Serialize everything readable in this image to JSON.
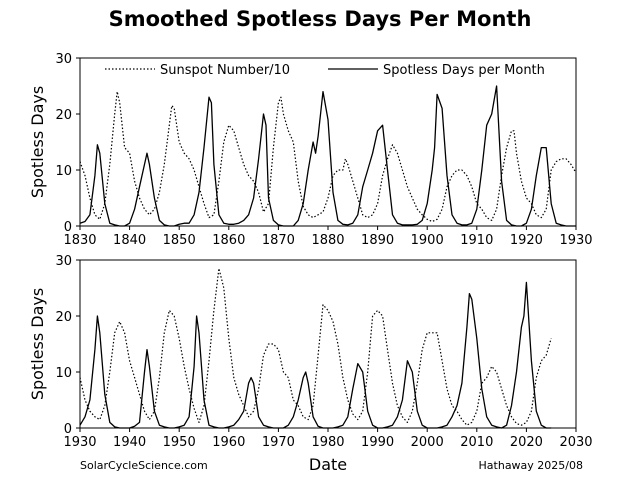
{
  "title": "Smoothed Spotless Days Per Month",
  "footer": {
    "left": "SolarCycleScience.com",
    "right": "Hathaway 2025/08"
  },
  "legend": {
    "sunspot": "Sunspot Number/10",
    "spotless": "Spotless Days per Month"
  },
  "colors": {
    "line": "#000000",
    "background": "#ffffff"
  },
  "chart_data": [
    {
      "type": "line",
      "title": "Smoothed Spotless Days Per Month",
      "xlabel": "",
      "ylabel": "Spotless Days",
      "xlim": [
        1830,
        1930
      ],
      "ylim": [
        0,
        30
      ],
      "xticks": [
        1830,
        1840,
        1850,
        1860,
        1870,
        1880,
        1890,
        1900,
        1910,
        1920,
        1930
      ],
      "yticks": [
        0,
        10,
        20,
        30
      ],
      "legend_position": "top",
      "series": [
        {
          "name": "Sunspot Number/10",
          "style": "dotted",
          "x": [
            1830,
            1831,
            1832,
            1833,
            1834,
            1835,
            1836,
            1837,
            1837.5,
            1838,
            1839,
            1840,
            1841,
            1842,
            1843,
            1844,
            1845,
            1846,
            1847,
            1848,
            1848.5,
            1849,
            1850,
            1851,
            1852,
            1853,
            1854,
            1855,
            1856,
            1857,
            1858,
            1859,
            1860,
            1861,
            1862,
            1863,
            1864,
            1865,
            1866,
            1867,
            1868,
            1869,
            1870,
            1870.5,
            1871,
            1872,
            1873,
            1874,
            1875,
            1876,
            1877,
            1878,
            1879,
            1880,
            1881,
            1882,
            1883,
            1883.5,
            1884,
            1885,
            1886,
            1887,
            1888,
            1889,
            1890,
            1891,
            1892,
            1893,
            1894,
            1895,
            1896,
            1897,
            1898,
            1899,
            1900,
            1901,
            1902,
            1903,
            1904,
            1905,
            1906,
            1907,
            1908,
            1909,
            1910,
            1911,
            1912,
            1913,
            1914,
            1915,
            1916,
            1917,
            1917.5,
            1918,
            1919,
            1920,
            1921,
            1922,
            1923,
            1924,
            1925,
            1926,
            1927,
            1928,
            1929,
            1930
          ],
          "y": [
            11.5,
            9,
            5,
            2,
            1.2,
            4,
            11,
            20,
            24,
            22,
            14,
            13,
            8,
            5,
            3,
            2,
            3,
            6,
            11,
            18,
            21.5,
            21,
            15,
            13,
            12,
            10,
            7,
            4,
            1.5,
            2,
            8,
            15,
            18,
            17,
            14,
            11,
            9,
            8,
            6,
            2.5,
            4,
            14,
            22,
            23,
            20,
            17,
            15,
            8,
            3.5,
            2,
            1.5,
            2,
            2.5,
            5,
            9,
            10,
            10,
            12,
            11,
            8,
            5,
            2,
            1.5,
            2,
            4,
            9,
            12,
            14.5,
            13,
            10,
            7,
            5,
            3,
            2,
            1.2,
            0.8,
            1.2,
            3,
            7,
            9,
            10,
            10,
            9,
            7,
            4,
            3,
            1.5,
            1,
            3,
            9,
            14,
            17,
            17,
            13,
            8,
            5,
            4,
            2,
            1.5,
            3,
            10,
            11.5,
            12,
            12,
            11,
            9.5
          ]
        },
        {
          "name": "Spotless Days per Month",
          "style": "solid",
          "x": [
            1830,
            1831,
            1832,
            1833,
            1833.5,
            1834,
            1835,
            1836,
            1837,
            1838,
            1839,
            1840,
            1841,
            1842,
            1843,
            1843.5,
            1844,
            1845,
            1846,
            1847,
            1848,
            1849,
            1850,
            1851,
            1852,
            1853,
            1854,
            1855,
            1856,
            1856.5,
            1857,
            1858,
            1859,
            1860,
            1861,
            1862,
            1863,
            1864,
            1865,
            1866,
            1867,
            1867.5,
            1868,
            1869,
            1870,
            1871,
            1872,
            1873,
            1874,
            1875,
            1876,
            1877,
            1877.5,
            1878,
            1879,
            1880,
            1881,
            1882,
            1883,
            1884,
            1885,
            1886,
            1887,
            1888,
            1889,
            1890,
            1891,
            1892,
            1893,
            1894,
            1895,
            1896,
            1897,
            1898,
            1899,
            1900,
            1901,
            1901.5,
            1902,
            1903,
            1904,
            1905,
            1906,
            1907,
            1908,
            1909,
            1910,
            1911,
            1912,
            1913,
            1914,
            1915,
            1916,
            1917,
            1918,
            1919,
            1920,
            1921,
            1922,
            1923,
            1924,
            1925,
            1926,
            1927,
            1928,
            1929,
            1930
          ],
          "y": [
            0.5,
            0.8,
            2,
            9,
            14.5,
            13,
            4,
            0.5,
            0.2,
            0,
            0,
            0.5,
            3,
            7,
            11,
            13,
            11,
            5,
            1,
            0.2,
            0,
            0,
            0.3,
            0.5,
            0.5,
            2,
            6,
            14,
            23,
            22,
            11,
            2,
            0.5,
            0.3,
            0.3,
            0.5,
            1,
            2,
            5,
            12,
            20,
            18,
            5,
            1,
            0.2,
            0,
            0,
            0,
            1,
            4,
            10,
            15,
            13,
            16,
            24,
            19,
            6,
            1,
            0.3,
            0.2,
            0.5,
            2,
            7,
            10,
            13,
            17,
            18,
            10,
            2,
            0.5,
            0.2,
            0.2,
            0.2,
            0.3,
            1,
            4,
            10,
            14,
            23.5,
            21,
            9,
            2,
            0.5,
            0.2,
            0.2,
            0.5,
            3,
            10,
            18,
            20,
            25,
            8,
            1,
            0.2,
            0,
            0,
            0.5,
            3,
            9,
            14,
            14,
            4,
            0.5,
            0.2,
            0,
            0,
            0
          ]
        }
      ]
    },
    {
      "type": "line",
      "xlabel": "Date",
      "ylabel": "Spotless Days",
      "xlim": [
        1930,
        2030
      ],
      "ylim": [
        0,
        30
      ],
      "xticks": [
        1930,
        1940,
        1950,
        1960,
        1970,
        1980,
        1990,
        2000,
        2010,
        2020,
        2030
      ],
      "yticks": [
        0,
        10,
        20,
        30
      ],
      "series": [
        {
          "name": "Sunspot Number/10",
          "style": "dotted",
          "x": [
            1930,
            1931,
            1932,
            1933,
            1934,
            1935,
            1936,
            1937,
            1938,
            1939,
            1940,
            1941,
            1942,
            1943,
            1944,
            1945,
            1946,
            1947,
            1948,
            1949,
            1950,
            1951,
            1952,
            1953,
            1954,
            1955,
            1956,
            1957,
            1958,
            1959,
            1960,
            1961,
            1962,
            1963,
            1964,
            1965,
            1966,
            1967,
            1968,
            1969,
            1970,
            1971,
            1972,
            1973,
            1974,
            1975,
            1976,
            1977,
            1978,
            1979,
            1980,
            1981,
            1982,
            1983,
            1984,
            1985,
            1986,
            1987,
            1988,
            1989,
            1990,
            1991,
            1992,
            1993,
            1994,
            1995,
            1996,
            1997,
            1998,
            1999,
            2000,
            2001,
            2002,
            2003,
            2004,
            2005,
            2006,
            2007,
            2008,
            2009,
            2010,
            2011,
            2012,
            2013,
            2014,
            2015,
            2016,
            2017,
            2018,
            2019,
            2020,
            2021,
            2022,
            2023,
            2024,
            2025
          ],
          "y": [
            9,
            5,
            3,
            2,
            1.5,
            4,
            10,
            17,
            19,
            17,
            12,
            9,
            6,
            3,
            1.5,
            3,
            9,
            17,
            21,
            20,
            16,
            11,
            7,
            3.5,
            1,
            4,
            12,
            21,
            28.5,
            25,
            16,
            9,
            6,
            4,
            2,
            3,
            7,
            13,
            15,
            15,
            14,
            10,
            9,
            5,
            4,
            2,
            1.5,
            4,
            13,
            22,
            21,
            19,
            15,
            9,
            5,
            2.5,
            1.5,
            3,
            10,
            20,
            21,
            20,
            14,
            8,
            4,
            2,
            1,
            3,
            8,
            14,
            17,
            17,
            17,
            12,
            7,
            4,
            3,
            1.5,
            0.5,
            1,
            3,
            8,
            9,
            11,
            10,
            7,
            4,
            2,
            0.8,
            0.5,
            1,
            3,
            9,
            12,
            13,
            16
          ]
        },
        {
          "name": "Spotless Days per Month",
          "style": "solid",
          "x": [
            1930,
            1931,
            1932,
            1933,
            1933.5,
            1934,
            1935,
            1936,
            1937,
            1938,
            1939,
            1940,
            1941,
            1942,
            1943,
            1943.5,
            1944,
            1945,
            1946,
            1947,
            1948,
            1949,
            1950,
            1951,
            1952,
            1953,
            1953.5,
            1954,
            1955,
            1956,
            1957,
            1958,
            1959,
            1960,
            1961,
            1962,
            1963,
            1964,
            1964.5,
            1965,
            1966,
            1967,
            1968,
            1969,
            1970,
            1971,
            1972,
            1973,
            1974,
            1975,
            1975.5,
            1976,
            1977,
            1978,
            1979,
            1980,
            1981,
            1982,
            1983,
            1984,
            1985,
            1986,
            1987,
            1988,
            1989,
            1990,
            1991,
            1992,
            1993,
            1994,
            1995,
            1996,
            1997,
            1998,
            1999,
            2000,
            2001,
            2002,
            2003,
            2004,
            2005,
            2006,
            2007,
            2008,
            2008.5,
            2009,
            2010,
            2011,
            2012,
            2013,
            2014,
            2015,
            2016,
            2017,
            2018,
            2019,
            2019.5,
            2020,
            2021,
            2022,
            2023,
            2024,
            2025
          ],
          "y": [
            0.5,
            2,
            5,
            14,
            20,
            17,
            6,
            1,
            0.2,
            0,
            0,
            0,
            0.3,
            1,
            10,
            14,
            11,
            3,
            0.5,
            0.2,
            0,
            0,
            0.2,
            0.5,
            2,
            11,
            20,
            17,
            5,
            0.5,
            0.2,
            0,
            0,
            0.2,
            0.5,
            1.5,
            3,
            8,
            9,
            8,
            2,
            0.5,
            0.2,
            0,
            0,
            0,
            0.5,
            2,
            5,
            9,
            10,
            8,
            2,
            0.3,
            0,
            0,
            0,
            0.2,
            0.5,
            2,
            7,
            11.5,
            10,
            3,
            0.5,
            0,
            0,
            0.2,
            0.5,
            2,
            5,
            12,
            10,
            3,
            0.5,
            0,
            0,
            0,
            0.2,
            0.5,
            2,
            4,
            8,
            18,
            24,
            23,
            16,
            7,
            2,
            0.5,
            0.2,
            0,
            0.5,
            4,
            10,
            18,
            20,
            26,
            12,
            3,
            0.5,
            0,
            0
          ]
        }
      ]
    }
  ]
}
